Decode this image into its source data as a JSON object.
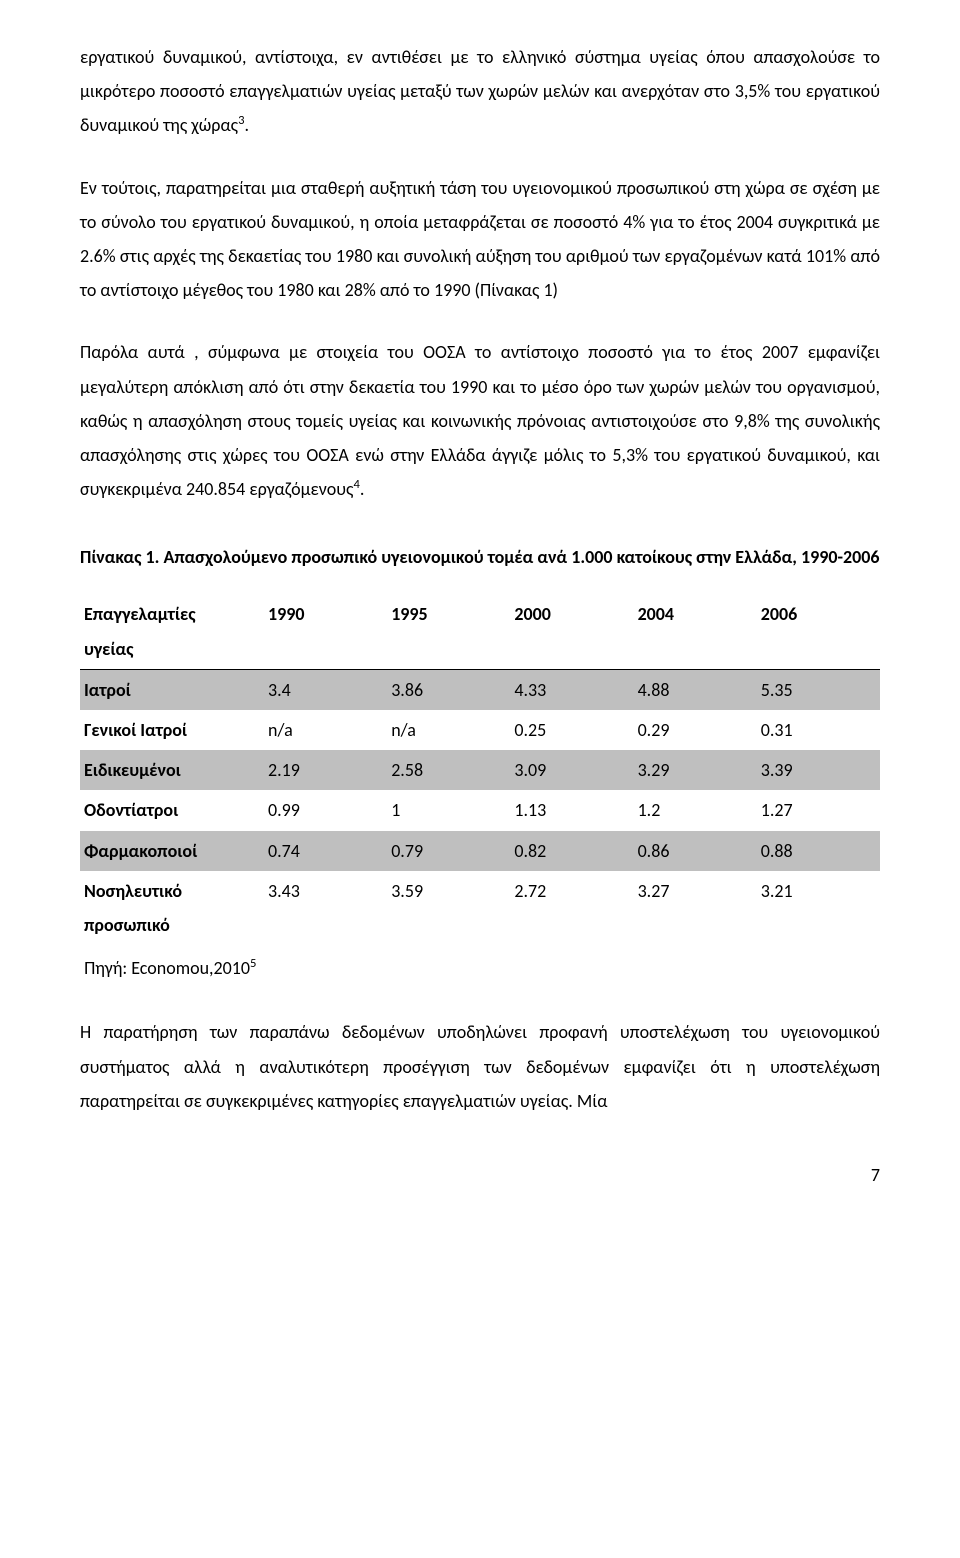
{
  "paragraphs": {
    "p1": "εργατικού δυναμικού, αντίστοιχα, εν αντιθέσει με το ελληνικό σύστημα υγείας όπου απασχολούσε το μικρότερο ποσοστό επαγγελματιών υγείας μεταξύ των χωρών μελών και ανερχόταν στο 3,5% του εργατικού δυναμικού της χώρας",
    "p1_sup": "3",
    "p1_end": ".",
    "p2": "Εν τούτοις, παρατηρείται μια σταθερή αυξητική τάση του υγειονομικού προσωπικού στη χώρα σε σχέση με το σύνολο του εργατικού δυναμικού, η οποία μεταφράζεται σε ποσοστό 4% για το έτος 2004 συγκριτικά με 2.6% στις αρχές της δεκαετίας του 1980 και συνολική αύξηση του αριθμού των εργαζομένων κατά 101% από το αντίστοιχο μέγεθος του 1980 και 28% από το 1990 (Πίνακας 1)",
    "p3": "Παρόλα αυτά , σύμφωνα με στοιχεία του ΟΟΣΑ το αντίστοιχο ποσοστό για το έτος 2007 εμφανίζει μεγαλύτερη απόκλιση από ότι στην δεκαετία του 1990 και το μέσο όρο των χωρών μελών του οργανισμού, καθώς η απασχόληση στους τομείς υγείας και κοινωνικής πρόνοιας αντιστοιχούσε στο 9,8% της συνολικής απασχόλησης στις χώρες του ΟΟΣΑ ενώ στην Ελλάδα άγγιζε μόλις το 5,3% του εργατικού δυναμικού, και συγκεκριμένα 240.854 εργαζόμενους",
    "p3_sup": "4",
    "p3_end": "."
  },
  "table_title": "Πίνακας 1. Απασχολούμενο προσωπικό υγειονομικού τομέα ανά 1.000 κατοίκους στην Ελλάδα, 1990-2006",
  "table": {
    "header_cat_l1": "Επαγγελαμτίες",
    "header_cat_l2": "υγείας",
    "years": [
      "1990",
      "1995",
      "2000",
      "2004",
      "2006"
    ],
    "rows": [
      {
        "cat": "Ιατροί",
        "vals": [
          "3.4",
          "3.86",
          "4.33",
          "4.88",
          "5.35"
        ],
        "shaded": true
      },
      {
        "cat": "Γενικοί Ιατροί",
        "vals": [
          "n/a",
          "n/a",
          "0.25",
          "0.29",
          "0.31"
        ],
        "shaded": false
      },
      {
        "cat": "Ειδικευμένοι",
        "vals": [
          "2.19",
          "2.58",
          "3.09",
          "3.29",
          "3.39"
        ],
        "shaded": true
      },
      {
        "cat": "Οδοντίατροι",
        "vals": [
          "0.99",
          "1",
          "1.13",
          "1.2",
          "1.27"
        ],
        "shaded": false
      },
      {
        "cat": "Φαρμακοποιοί",
        "vals": [
          "0.74",
          "0.79",
          "0.82",
          "0.86",
          "0.88"
        ],
        "shaded": true
      },
      {
        "cat_l1": "Νοσηλευτικό",
        "cat_l2": "προσωπικό",
        "vals": [
          "3.43",
          "3.59",
          "2.72",
          "3.27",
          "3.21"
        ],
        "shaded": false
      }
    ]
  },
  "source_text": "Πηγή: Economou,2010",
  "source_sup": "5",
  "p4": "Η παρατήρηση των παραπάνω δεδομένων υποδηλώνει προφανή υποστελέχωση του υγειονομικού συστήματος αλλά η αναλυτικότερη προσέγγιση των δεδομένων εμφανίζει ότι η υποστελέχωση παρατηρείται σε συγκεκριμένες κατηγορίες επαγγελματιών υγείας. Μία",
  "page_number": "7"
}
